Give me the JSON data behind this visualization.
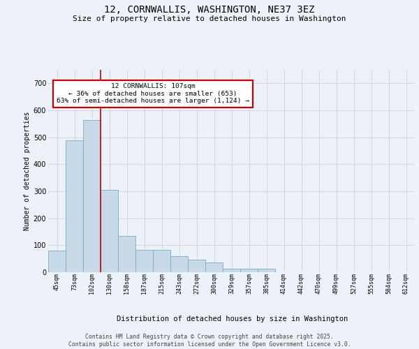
{
  "title_line1": "12, CORNWALLIS, WASHINGTON, NE37 3EZ",
  "title_line2": "Size of property relative to detached houses in Washington",
  "xlabel": "Distribution of detached houses by size in Washington",
  "ylabel": "Number of detached properties",
  "categories": [
    "45sqm",
    "73sqm",
    "102sqm",
    "130sqm",
    "158sqm",
    "187sqm",
    "215sqm",
    "243sqm",
    "272sqm",
    "300sqm",
    "329sqm",
    "357sqm",
    "385sqm",
    "414sqm",
    "442sqm",
    "470sqm",
    "499sqm",
    "527sqm",
    "555sqm",
    "584sqm",
    "612sqm"
  ],
  "values": [
    80,
    490,
    565,
    305,
    135,
    83,
    83,
    60,
    47,
    37,
    13,
    13,
    13,
    0,
    0,
    0,
    0,
    0,
    0,
    0,
    0
  ],
  "bar_color": "#c8d9e8",
  "bar_edge_color": "#7aaac8",
  "grid_color": "#d0d8e8",
  "bg_color": "#edf2f8",
  "red_line_x": 2.5,
  "annotation_text": "12 CORNWALLIS: 107sqm\n← 36% of detached houses are smaller (653)\n63% of semi-detached houses are larger (1,124) →",
  "annotation_box_facecolor": "#ffffff",
  "annotation_box_edgecolor": "#cc0000",
  "footer_line1": "Contains HM Land Registry data © Crown copyright and database right 2025.",
  "footer_line2": "Contains public sector information licensed under the Open Government Licence v3.0.",
  "ylim": [
    0,
    750
  ],
  "yticks": [
    0,
    100,
    200,
    300,
    400,
    500,
    600,
    700
  ],
  "title_fontsize": 10,
  "subtitle_fontsize": 8,
  "xlabel_fontsize": 7.5,
  "ylabel_fontsize": 7,
  "tick_fontsize": 6,
  "annot_fontsize": 6.8,
  "footer_fontsize": 5.8
}
